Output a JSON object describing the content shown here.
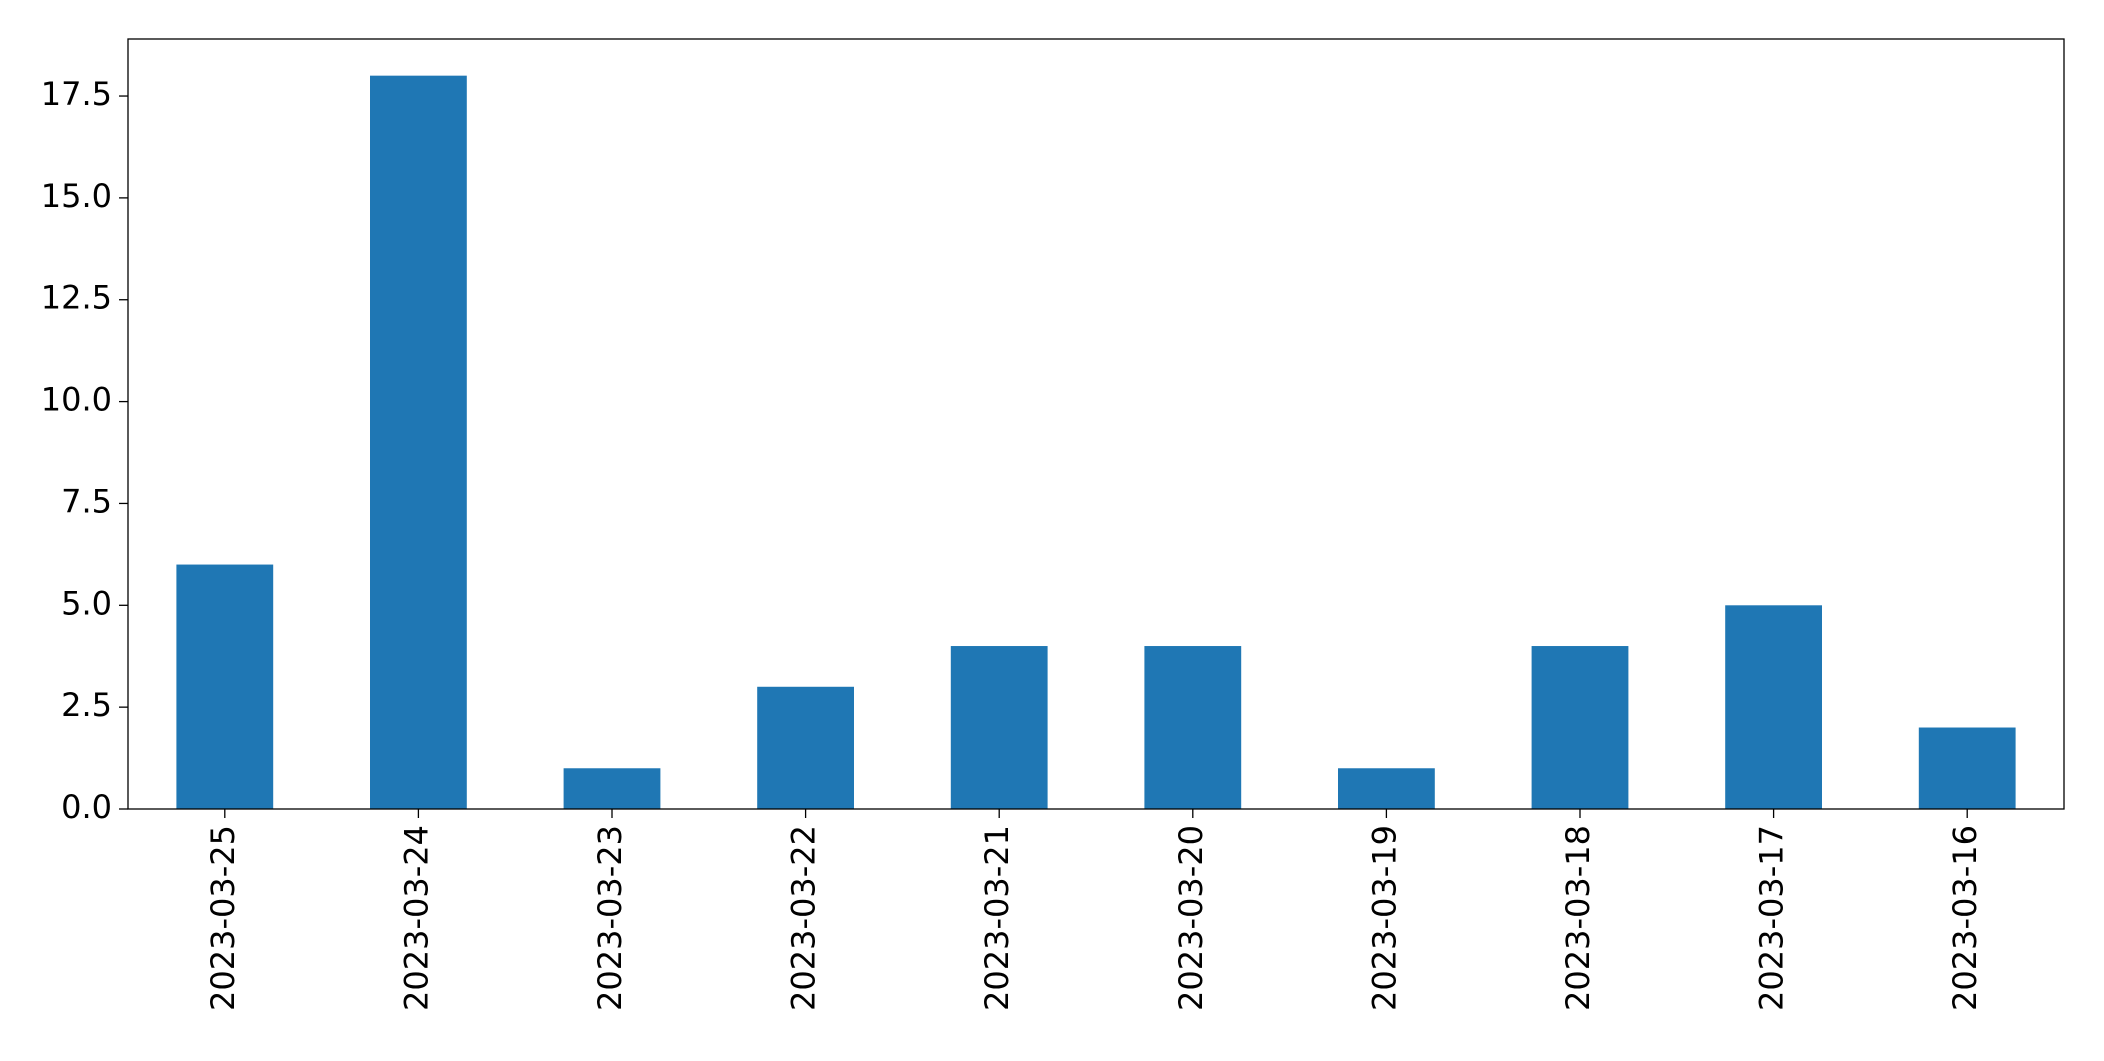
{
  "chart_data": {
    "type": "bar",
    "categories": [
      "2023-03-25",
      "2023-03-24",
      "2023-03-23",
      "2023-03-22",
      "2023-03-21",
      "2023-03-20",
      "2023-03-19",
      "2023-03-18",
      "2023-03-17",
      "2023-03-16"
    ],
    "values": [
      6,
      18,
      1,
      3,
      4,
      4,
      1,
      4,
      5,
      2
    ],
    "color": "#1f77b4",
    "ylim": [
      0,
      18.9
    ],
    "yticks": [
      {
        "value": 0,
        "label": "0.0"
      },
      2.5,
      {
        "value": 5,
        "label": "5.0"
      },
      7.5,
      {
        "value": 10,
        "label": "10.0"
      },
      12.5,
      {
        "value": 15,
        "label": "15.0"
      },
      17.5
    ],
    "grid": false
  }
}
